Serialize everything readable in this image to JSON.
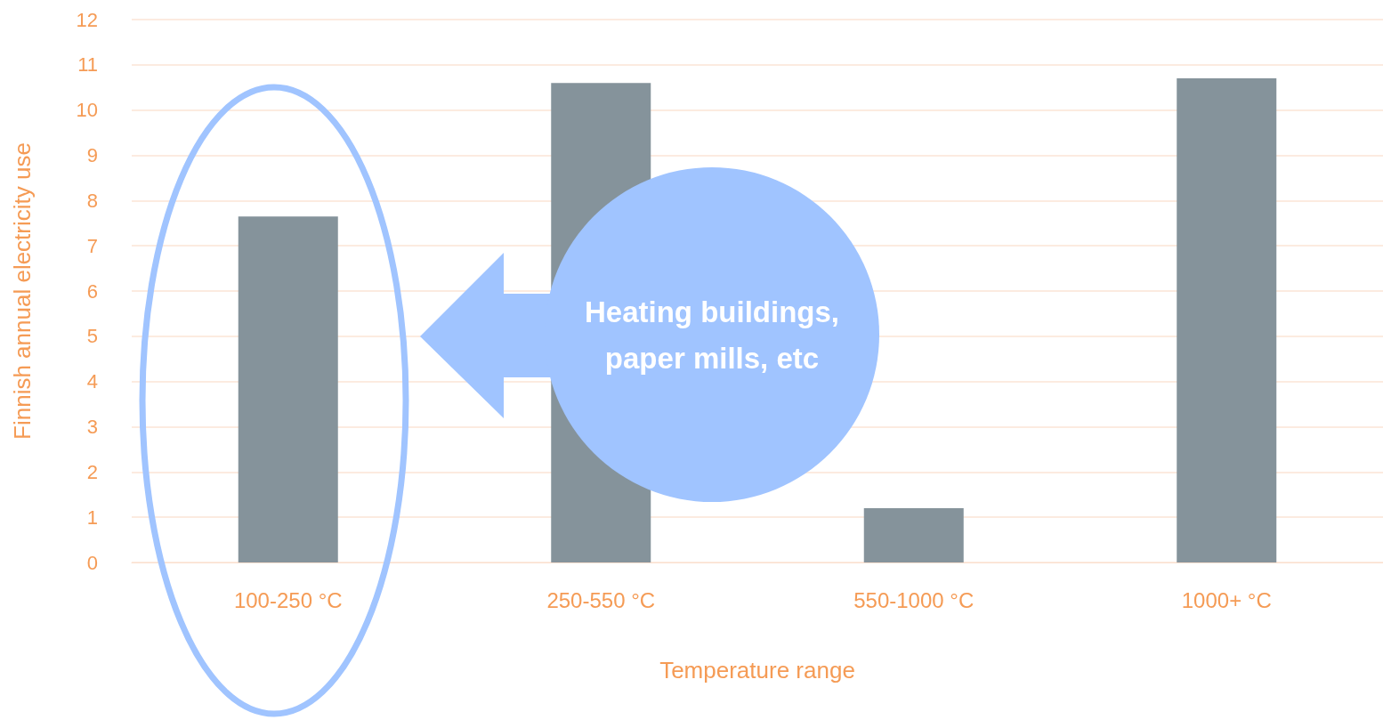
{
  "chart_data": {
    "type": "bar",
    "xlabel": "Temperature range",
    "ylabel": "Finnish annual electricity use",
    "categories": [
      "100-250 °C",
      "250-550 °C",
      "550-1000 °C",
      "1000+ °C"
    ],
    "values": [
      7.65,
      10.6,
      1.2,
      10.7
    ],
    "color": "#85939b",
    "ylim": [
      0,
      12
    ],
    "yticks": [
      0,
      1,
      2,
      3,
      4,
      5,
      6,
      7,
      8,
      9,
      10,
      11,
      12
    ],
    "grid": "y",
    "annotations": [
      "Heating buildings, paper mills, etc"
    ]
  }
}
